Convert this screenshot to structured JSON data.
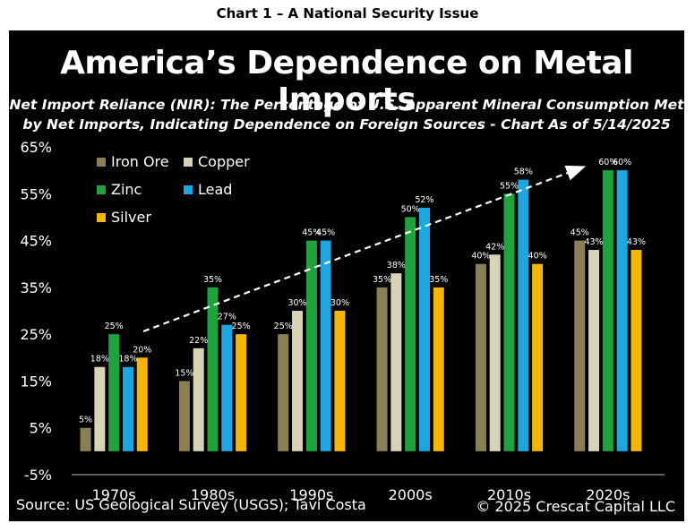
{
  "heading": "Chart 1 – A National Security Issue",
  "title": "America’s Dependence on Metal Imports",
  "subtitle_line1": "Net Import Reliance (NIR): The Percentage of U.S. Apparent Mineral Consumption Met",
  "subtitle_line2": "by Net Imports, Indicating Dependence on Foreign Sources - Chart As of 5/14/2025",
  "source": "Source: US Geological Survey (USGS); Tavi Costa",
  "copyright": "© 2025 Crescat Capital LLC",
  "chart_data": {
    "type": "bar",
    "categories": [
      "1970s",
      "1980s",
      "1990s",
      "2000s",
      "2010s",
      "2020s"
    ],
    "series": [
      {
        "name": "Iron Ore",
        "color": "#8a7f55",
        "values": [
          5,
          15,
          25,
          35,
          40,
          45
        ]
      },
      {
        "name": "Copper",
        "color": "#d8d2b6",
        "values": [
          18,
          22,
          30,
          38,
          42,
          43
        ]
      },
      {
        "name": "Zinc",
        "color": "#1fa33d",
        "values": [
          25,
          35,
          45,
          50,
          55,
          60
        ]
      },
      {
        "name": "Lead",
        "color": "#1ba7e2",
        "values": [
          18,
          27,
          45,
          52,
          58,
          60
        ]
      },
      {
        "name": "Silver",
        "color": "#f5b700",
        "values": [
          20,
          25,
          30,
          35,
          40,
          43
        ]
      }
    ],
    "yticks": [
      "65%",
      "55%",
      "45%",
      "35%",
      "25%",
      "15%",
      "5%",
      "-5%"
    ],
    "ylim": [
      -5,
      65
    ],
    "value_suffix": "%",
    "legend_position": "top-left",
    "trend_arrow": "dashed white, upward from 1980s toward 2020s",
    "grid": false
  }
}
